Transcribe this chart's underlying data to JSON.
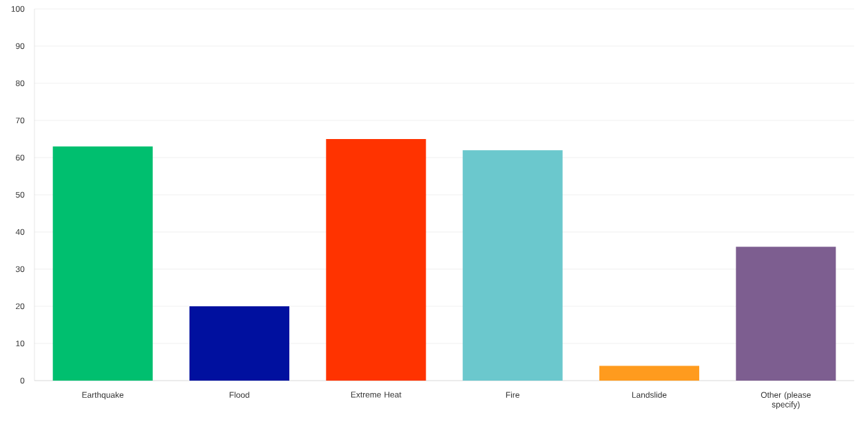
{
  "chart_data": {
    "type": "bar",
    "categories": [
      "Earthquake",
      "Flood",
      "Extreme Heat",
      "Fire",
      "Landslide",
      "Other (please specify)"
    ],
    "values": [
      63,
      20,
      65,
      62,
      4,
      36
    ],
    "colors": [
      "#00bf6f",
      "#00109f",
      "#ff3300",
      "#6bc8cd",
      "#ff9b1e",
      "#7d5e90"
    ],
    "ylim": [
      0,
      100
    ],
    "yticks": [
      0,
      10,
      20,
      30,
      40,
      50,
      60,
      70,
      80,
      90,
      100
    ],
    "grid": "y"
  }
}
